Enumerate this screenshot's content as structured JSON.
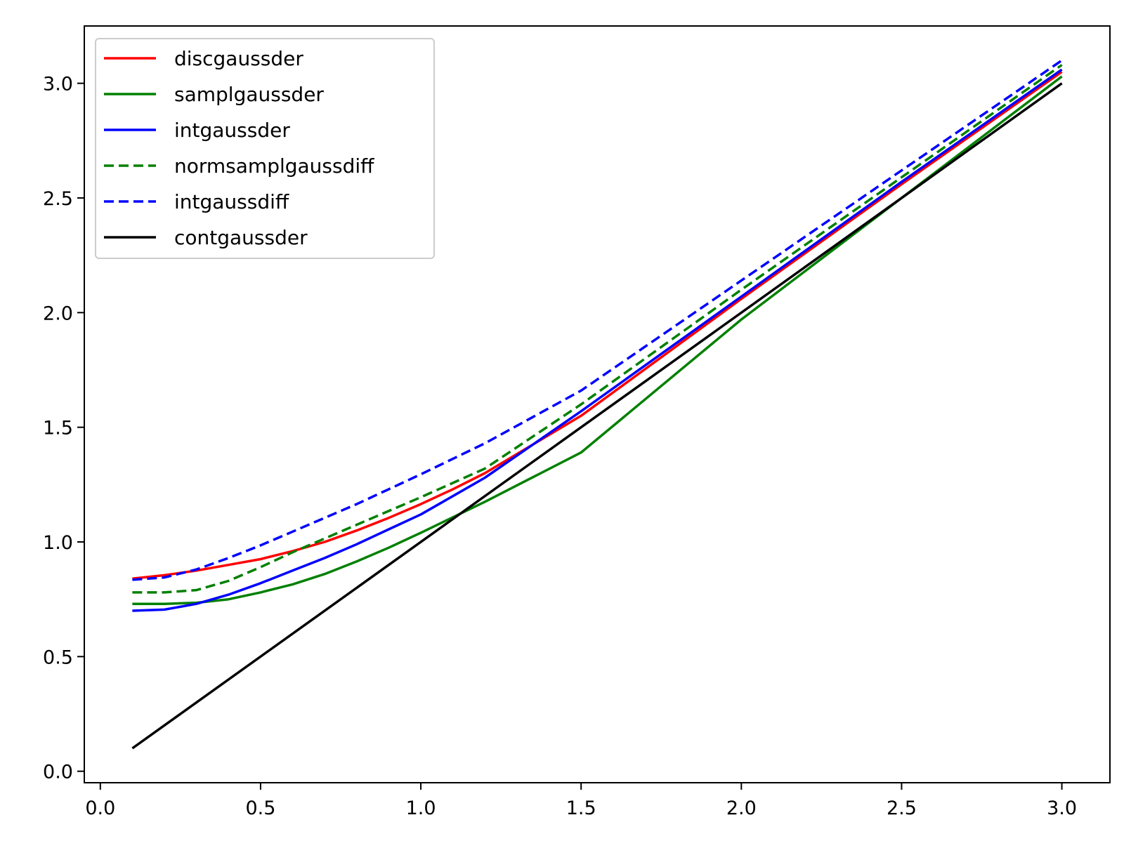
{
  "chart_data": {
    "type": "line",
    "title": "",
    "xlabel": "",
    "ylabel": "",
    "xlim": [
      -0.05,
      3.15
    ],
    "ylim": [
      -0.05,
      3.25
    ],
    "xticks": [
      0.0,
      0.5,
      1.0,
      1.5,
      2.0,
      2.5,
      3.0
    ],
    "xtick_labels": [
      "0.0",
      "0.5",
      "1.0",
      "1.5",
      "2.0",
      "2.5",
      "3.0"
    ],
    "yticks": [
      0.0,
      0.5,
      1.0,
      1.5,
      2.0,
      2.5,
      3.0
    ],
    "ytick_labels": [
      "0.0",
      "0.5",
      "1.0",
      "1.5",
      "2.0",
      "2.5",
      "3.0"
    ],
    "grid": false,
    "legend_position": "top-left",
    "series": [
      {
        "name": "discgaussder",
        "color": "#ff0000",
        "style": "solid",
        "x": [
          0.1,
          0.2,
          0.3,
          0.4,
          0.5,
          0.6,
          0.7,
          0.8,
          0.9,
          1.0,
          1.1,
          1.2,
          1.5,
          2.0,
          2.5,
          3.0
        ],
        "y": [
          0.84,
          0.855,
          0.875,
          0.9,
          0.925,
          0.96,
          1.0,
          1.05,
          1.105,
          1.165,
          1.23,
          1.3,
          1.55,
          2.06,
          2.56,
          3.05
        ]
      },
      {
        "name": "samplgaussder",
        "color": "#008000",
        "style": "solid",
        "x": [
          0.1,
          0.2,
          0.3,
          0.4,
          0.5,
          0.6,
          0.7,
          0.8,
          0.9,
          1.0,
          1.2,
          1.5,
          2.0,
          2.5,
          3.0
        ],
        "y": [
          0.73,
          0.73,
          0.735,
          0.75,
          0.78,
          0.815,
          0.86,
          0.915,
          0.975,
          1.04,
          1.175,
          1.39,
          1.97,
          2.5,
          3.03
        ]
      },
      {
        "name": "intgaussder",
        "color": "#0000ff",
        "style": "solid",
        "x": [
          0.1,
          0.2,
          0.3,
          0.4,
          0.5,
          0.6,
          0.7,
          0.8,
          0.9,
          1.0,
          1.1,
          1.2,
          1.5,
          2.0,
          2.5,
          3.0
        ],
        "y": [
          0.7,
          0.705,
          0.73,
          0.77,
          0.82,
          0.875,
          0.93,
          0.99,
          1.055,
          1.12,
          1.2,
          1.28,
          1.57,
          2.07,
          2.57,
          3.06
        ]
      },
      {
        "name": "normsamplgaussdiff",
        "color": "#008000",
        "style": "dashed",
        "x": [
          0.1,
          0.2,
          0.3,
          0.4,
          0.5,
          0.6,
          0.7,
          0.8,
          0.9,
          1.0,
          1.2,
          1.5,
          2.0,
          2.5,
          3.0
        ],
        "y": [
          0.78,
          0.78,
          0.79,
          0.83,
          0.89,
          0.955,
          1.015,
          1.075,
          1.135,
          1.195,
          1.32,
          1.6,
          2.1,
          2.59,
          3.08
        ]
      },
      {
        "name": "intgaussdiff",
        "color": "#0000ff",
        "style": "dashed",
        "x": [
          0.1,
          0.2,
          0.3,
          0.4,
          0.5,
          0.6,
          0.7,
          0.8,
          0.9,
          1.0,
          1.2,
          1.5,
          2.0,
          2.5,
          3.0
        ],
        "y": [
          0.835,
          0.845,
          0.88,
          0.93,
          0.985,
          1.045,
          1.105,
          1.165,
          1.23,
          1.295,
          1.43,
          1.66,
          2.14,
          2.62,
          3.1
        ]
      },
      {
        "name": "contgaussder",
        "color": "#000000",
        "style": "solid",
        "x": [
          0.1,
          3.0
        ],
        "y": [
          0.1,
          3.0
        ]
      }
    ]
  }
}
